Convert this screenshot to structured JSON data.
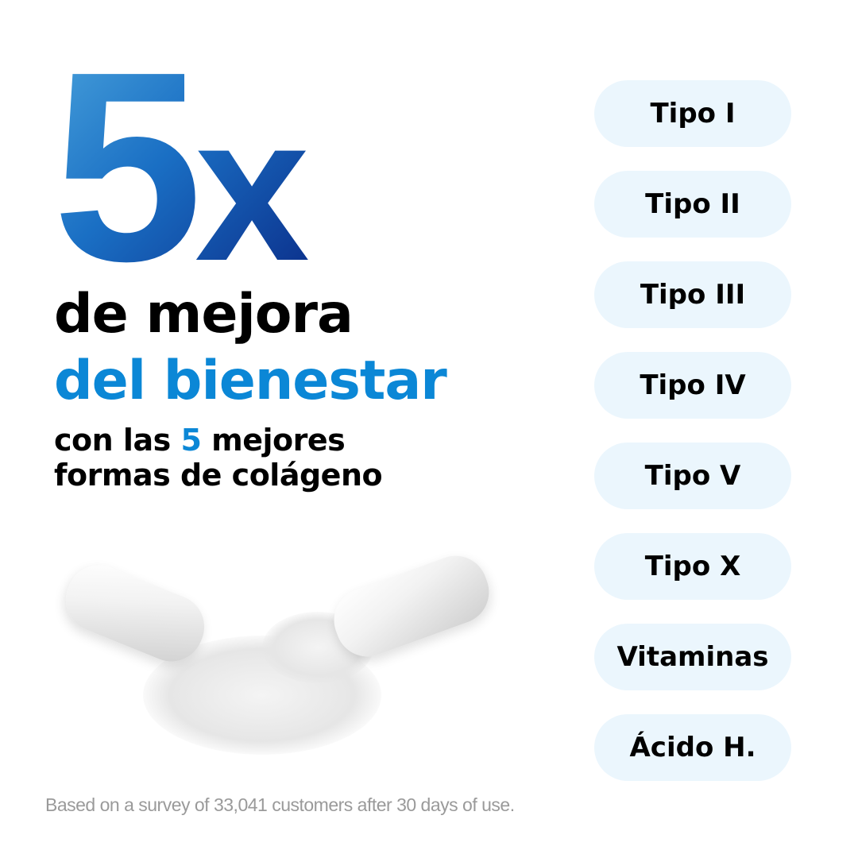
{
  "hero": {
    "number": "5",
    "multiplier": "x"
  },
  "headline": {
    "line1": "de mejora",
    "line2": "del bienestar"
  },
  "subheadline": {
    "prefix": "con las ",
    "highlight": "5",
    "suffix": " mejores",
    "line2": "formas de colágeno"
  },
  "pills": [
    "Tipo I",
    "Tipo II",
    "Tipo III",
    "Tipo IV",
    "Tipo V",
    "Tipo X",
    "Vitaminas",
    "Ácido H."
  ],
  "footnote": "Based on a survey of 33,041 customers after 30 days of use.",
  "colors": {
    "accent": "#0b87d6",
    "pill_bg": "#ebf6fd",
    "gradient_start": "#4aa3dc",
    "gradient_end": "#0a2a86"
  }
}
